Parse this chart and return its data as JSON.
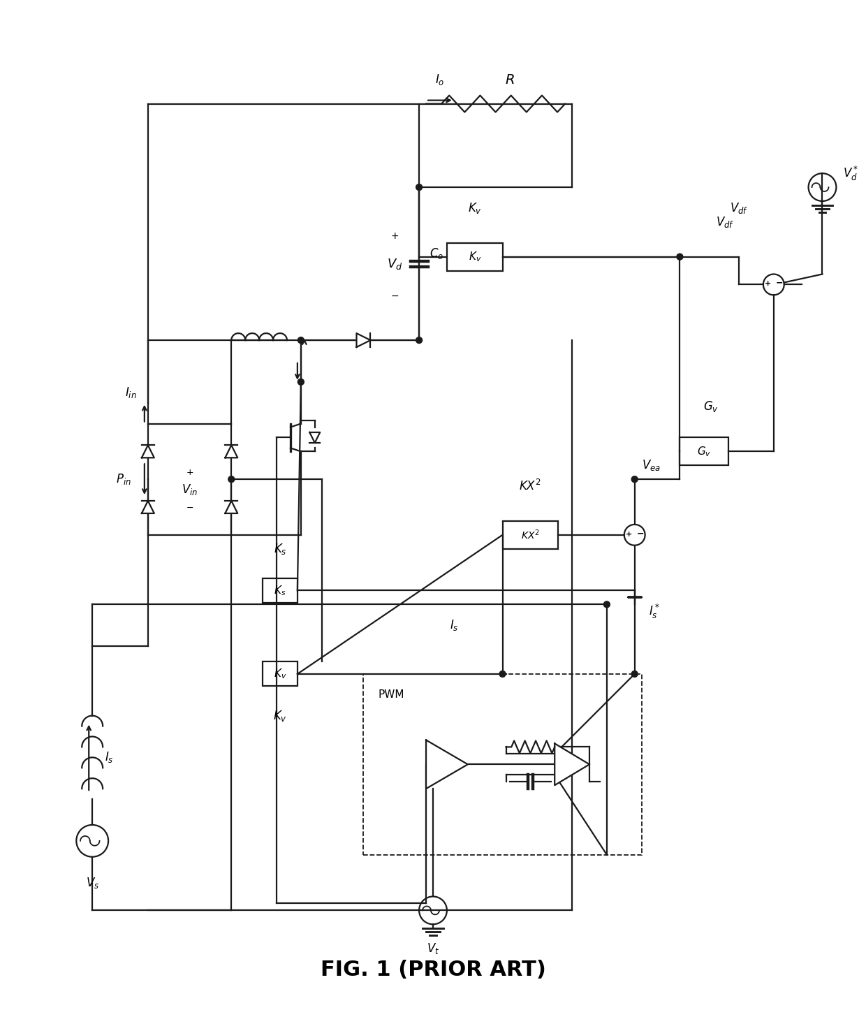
{
  "title": "FIG. 1 (PRIOR ART)",
  "bg_color": "#ffffff",
  "lc": "#1a1a1a",
  "lw": 1.6,
  "dlw": 1.3,
  "fs": 12
}
